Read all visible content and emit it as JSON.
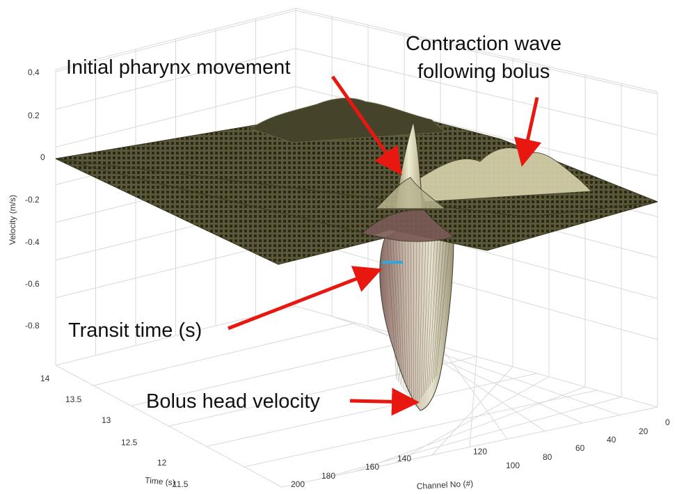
{
  "chart_data": {
    "type": "surface",
    "title": "",
    "zlabel": "Velocity (m/s)",
    "xlabel": "Channel No (#)",
    "ylabel": "Time (s)",
    "z_ticks": [
      "0.4",
      "0.2",
      "0",
      "-0.2",
      "-0.4",
      "-0.6",
      "-0.8"
    ],
    "channel_ticks": [
      "0",
      "20",
      "40",
      "60",
      "80",
      "100",
      "120",
      "140",
      "160",
      "180",
      "200"
    ],
    "time_ticks": [
      "14",
      "13.5",
      "13",
      "12.5",
      "12",
      "11.5"
    ],
    "zlim": [
      -1,
      0.4
    ],
    "channel_range": [
      0,
      200
    ],
    "time_range": [
      11.5,
      14
    ],
    "grid": true,
    "surface_color": "#c9c6a2",
    "edge_color": "#2a2816",
    "arrow_color": "#e8170f",
    "marker_color": "#2ea7e0",
    "features": [
      {
        "name": "Initial pharynx movement",
        "channel": 95,
        "time": 13.2,
        "velocity": 0.25
      },
      {
        "name": "Contraction wave following bolus",
        "channel": 55,
        "time": 13.0,
        "velocity": 0.05
      },
      {
        "name": "Bolus head velocity",
        "channel": 115,
        "time": 12.3,
        "velocity": -1.0
      }
    ],
    "annotations": [
      {
        "text": "Initial pharynx movement"
      },
      {
        "text": "Contraction wave"
      },
      {
        "text": "following bolus"
      },
      {
        "text": "Transit time (s)"
      },
      {
        "text": "Bolus head velocity"
      }
    ]
  }
}
